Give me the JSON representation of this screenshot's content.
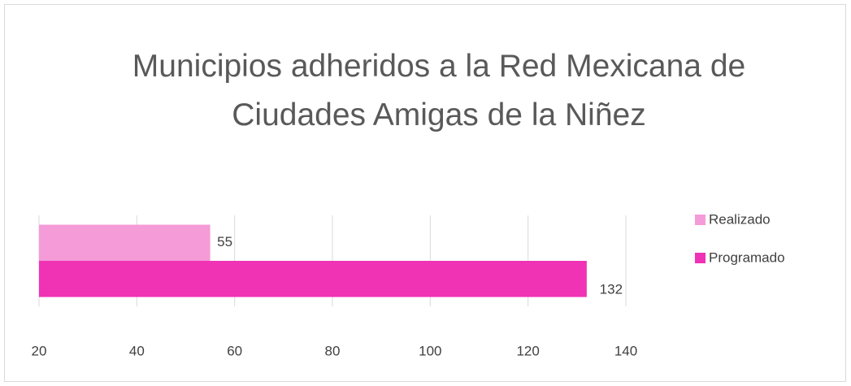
{
  "chart_data": {
    "type": "bar",
    "orientation": "horizontal",
    "title": "Municipios adheridos a la Red Mexicana de Ciudades Amigas de la Niñez",
    "categories": [
      null
    ],
    "series": [
      {
        "name": "Realizado",
        "color": "#f59bd8",
        "values": [
          55
        ]
      },
      {
        "name": "Programado",
        "color": "#f032b4",
        "values": [
          132
        ]
      }
    ],
    "xlim": [
      20,
      140
    ],
    "xticks": [
      20,
      40,
      60,
      80,
      100,
      120,
      140
    ],
    "grid": true,
    "legend": "right"
  }
}
